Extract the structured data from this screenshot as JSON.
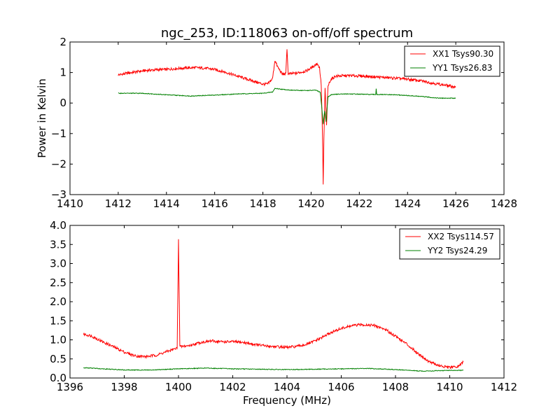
{
  "figure": {
    "title": "ngc_253, ID:118063 on-off/off spectrum",
    "xlabel": "Frequency (MHz)",
    "ylabel": "Power in Kelvin"
  },
  "chart_data": [
    {
      "type": "line",
      "xlim": [
        1410,
        1428
      ],
      "ylim": [
        -3,
        2
      ],
      "xticks": [
        1410,
        1412,
        1414,
        1416,
        1418,
        1420,
        1422,
        1424,
        1426,
        1428
      ],
      "xtick_labels": [
        "1410",
        "1412",
        "1414",
        "1416",
        "1418",
        "1420",
        "1422",
        "1424",
        "1426",
        "1428"
      ],
      "yticks": [
        -3,
        -2,
        -1,
        0,
        1,
        2
      ],
      "ytick_labels": [
        "−3",
        "−2",
        "−1",
        "0",
        "1",
        "2"
      ],
      "ylabel": "Power in Kelvin",
      "legend_position": "top-right",
      "series": [
        {
          "name": "XX1 Tsys90.30",
          "color": "#ff0000",
          "points": [
            [
              1412.0,
              0.92
            ],
            [
              1412.4,
              0.98
            ],
            [
              1412.8,
              1.03
            ],
            [
              1413.2,
              1.07
            ],
            [
              1413.6,
              1.09
            ],
            [
              1414.0,
              1.1
            ],
            [
              1414.4,
              1.13
            ],
            [
              1414.8,
              1.15
            ],
            [
              1415.2,
              1.16
            ],
            [
              1415.6,
              1.14
            ],
            [
              1416.0,
              1.1
            ],
            [
              1416.4,
              1.02
            ],
            [
              1416.8,
              0.92
            ],
            [
              1417.2,
              0.82
            ],
            [
              1417.6,
              0.72
            ],
            [
              1418.0,
              0.62
            ],
            [
              1418.2,
              0.62
            ],
            [
              1418.4,
              0.8
            ],
            [
              1418.5,
              1.4
            ],
            [
              1418.6,
              1.2
            ],
            [
              1418.8,
              0.95
            ],
            [
              1418.95,
              0.95
            ],
            [
              1419.0,
              1.8
            ],
            [
              1419.05,
              0.95
            ],
            [
              1419.4,
              0.98
            ],
            [
              1419.8,
              1.05
            ],
            [
              1420.1,
              1.2
            ],
            [
              1420.25,
              1.3
            ],
            [
              1420.35,
              1.15
            ],
            [
              1420.42,
              0.6
            ],
            [
              1420.47,
              -1.0
            ],
            [
              1420.5,
              -2.7
            ],
            [
              1420.53,
              -1.2
            ],
            [
              1420.58,
              0.5
            ],
            [
              1420.64,
              -0.75
            ],
            [
              1420.7,
              0.55
            ],
            [
              1420.8,
              0.75
            ],
            [
              1421.0,
              0.88
            ],
            [
              1421.6,
              0.9
            ],
            [
              1422.2,
              0.88
            ],
            [
              1422.8,
              0.85
            ],
            [
              1423.4,
              0.82
            ],
            [
              1424.0,
              0.78
            ],
            [
              1424.6,
              0.72
            ],
            [
              1425.2,
              0.63
            ],
            [
              1425.6,
              0.58
            ],
            [
              1426.0,
              0.52
            ]
          ]
        },
        {
          "name": "YY1 Tsys26.83",
          "color": "#008000",
          "points": [
            [
              1412.0,
              0.32
            ],
            [
              1413.0,
              0.32
            ],
            [
              1414.0,
              0.27
            ],
            [
              1415.0,
              0.23
            ],
            [
              1416.0,
              0.26
            ],
            [
              1417.0,
              0.3
            ],
            [
              1418.0,
              0.32
            ],
            [
              1418.4,
              0.36
            ],
            [
              1418.5,
              0.48
            ],
            [
              1418.8,
              0.45
            ],
            [
              1419.2,
              0.42
            ],
            [
              1419.8,
              0.41
            ],
            [
              1420.2,
              0.42
            ],
            [
              1420.38,
              0.35
            ],
            [
              1420.45,
              -0.2
            ],
            [
              1420.5,
              -0.7
            ],
            [
              1420.56,
              -0.25
            ],
            [
              1420.62,
              -0.6
            ],
            [
              1420.7,
              0.2
            ],
            [
              1420.85,
              0.28
            ],
            [
              1421.5,
              0.3
            ],
            [
              1422.5,
              0.28
            ],
            [
              1422.68,
              0.28
            ],
            [
              1422.7,
              0.48
            ],
            [
              1422.72,
              0.28
            ],
            [
              1423.5,
              0.27
            ],
            [
              1424.5,
              0.22
            ],
            [
              1425.3,
              0.16
            ],
            [
              1426.0,
              0.16
            ]
          ]
        }
      ]
    },
    {
      "type": "line",
      "xlim": [
        1396,
        1412
      ],
      "ylim": [
        0,
        4
      ],
      "xticks": [
        1396,
        1398,
        1400,
        1402,
        1404,
        1406,
        1408,
        1410,
        1412
      ],
      "xtick_labels": [
        "1396",
        "1398",
        "1400",
        "1402",
        "1404",
        "1406",
        "1408",
        "1410",
        "1412"
      ],
      "yticks": [
        0,
        0.5,
        1,
        1.5,
        2,
        2.5,
        3,
        3.5,
        4
      ],
      "ytick_labels": [
        "0.0",
        "0.5",
        "1.0",
        "1.5",
        "2.0",
        "2.5",
        "3.0",
        "3.5",
        "4.0"
      ],
      "xlabel": "Frequency (MHz)",
      "legend_position": "top-right",
      "series": [
        {
          "name": "XX2 Tsys114.57",
          "color": "#ff0000",
          "points": [
            [
              1396.5,
              1.15
            ],
            [
              1396.8,
              1.1
            ],
            [
              1397.2,
              0.95
            ],
            [
              1397.6,
              0.82
            ],
            [
              1398.0,
              0.68
            ],
            [
              1398.4,
              0.58
            ],
            [
              1398.8,
              0.56
            ],
            [
              1399.2,
              0.6
            ],
            [
              1399.6,
              0.7
            ],
            [
              1399.95,
              0.78
            ],
            [
              1400.0,
              3.65
            ],
            [
              1400.05,
              0.82
            ],
            [
              1400.4,
              0.85
            ],
            [
              1400.8,
              0.93
            ],
            [
              1401.2,
              0.97
            ],
            [
              1401.6,
              0.95
            ],
            [
              1402.0,
              0.95
            ],
            [
              1402.4,
              0.93
            ],
            [
              1402.8,
              0.88
            ],
            [
              1403.2,
              0.84
            ],
            [
              1403.6,
              0.82
            ],
            [
              1404.0,
              0.8
            ],
            [
              1404.4,
              0.83
            ],
            [
              1404.8,
              0.9
            ],
            [
              1405.2,
              1.03
            ],
            [
              1405.6,
              1.18
            ],
            [
              1406.0,
              1.3
            ],
            [
              1406.4,
              1.37
            ],
            [
              1406.8,
              1.4
            ],
            [
              1407.2,
              1.38
            ],
            [
              1407.6,
              1.28
            ],
            [
              1408.0,
              1.1
            ],
            [
              1408.4,
              0.9
            ],
            [
              1408.8,
              0.66
            ],
            [
              1409.2,
              0.45
            ],
            [
              1409.6,
              0.32
            ],
            [
              1410.0,
              0.27
            ],
            [
              1410.3,
              0.3
            ],
            [
              1410.5,
              0.42
            ]
          ]
        },
        {
          "name": "YY2 Tsys24.29",
          "color": "#008000",
          "points": [
            [
              1396.5,
              0.27
            ],
            [
              1397.0,
              0.25
            ],
            [
              1398.0,
              0.21
            ],
            [
              1399.0,
              0.21
            ],
            [
              1400.0,
              0.24
            ],
            [
              1401.0,
              0.26
            ],
            [
              1402.0,
              0.24
            ],
            [
              1403.0,
              0.23
            ],
            [
              1404.0,
              0.22
            ],
            [
              1405.0,
              0.23
            ],
            [
              1406.0,
              0.24
            ],
            [
              1407.0,
              0.25
            ],
            [
              1408.0,
              0.22
            ],
            [
              1409.0,
              0.18
            ],
            [
              1410.0,
              0.2
            ],
            [
              1410.5,
              0.2
            ]
          ]
        }
      ]
    }
  ]
}
